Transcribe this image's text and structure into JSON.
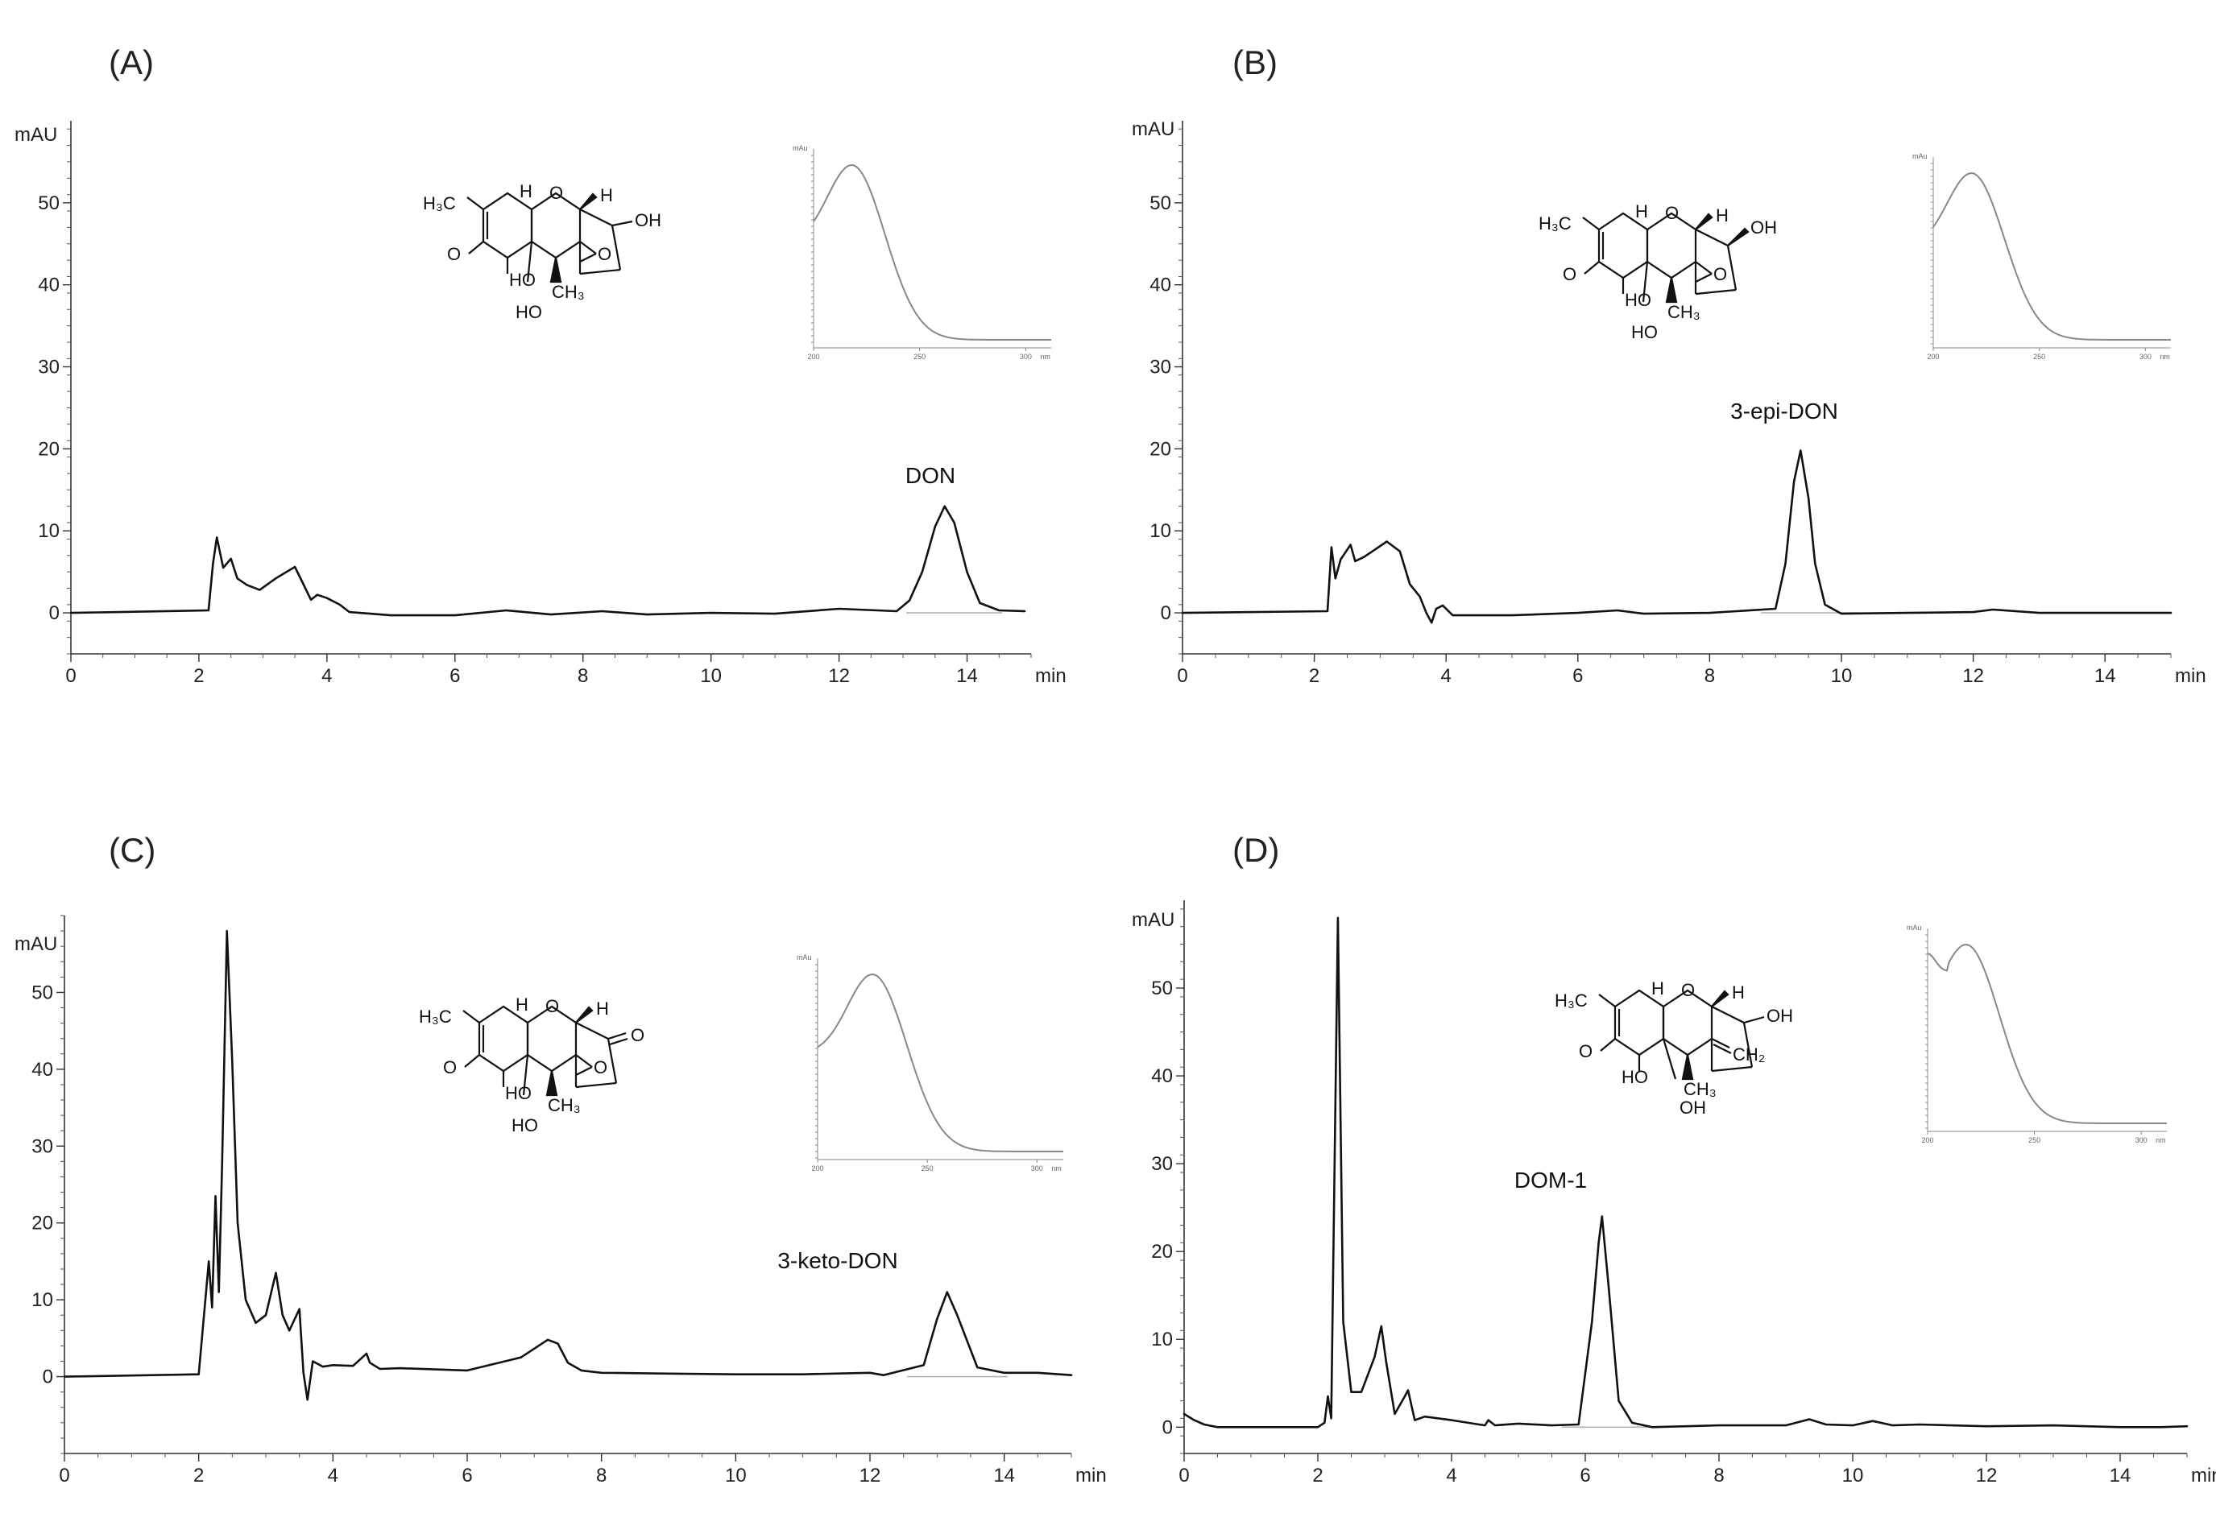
{
  "chart_data": [
    {
      "type": "line",
      "panel_label": "(A)",
      "ylabel": "mAU",
      "xlabel": "min",
      "xlim": [
        0,
        15
      ],
      "ylim": [
        -5,
        60
      ],
      "xticks": [
        0,
        2,
        4,
        6,
        8,
        10,
        12,
        14
      ],
      "yticks": [
        0,
        10,
        20,
        30,
        40,
        50
      ],
      "peak_label": "DON",
      "peak": {
        "rt": 13.65,
        "height": 13.0
      },
      "series": [
        {
          "x": [
            0,
            2.15,
            2.22,
            2.28,
            2.38,
            2.5,
            2.6,
            2.75,
            2.95,
            3.2,
            3.5,
            3.65,
            3.75,
            3.85,
            4.0,
            4.2,
            4.35,
            5,
            6,
            6.8,
            7.5,
            8.3,
            9,
            10,
            11,
            12,
            12.9,
            13.1,
            13.3,
            13.5,
            13.65,
            13.8,
            14.0,
            14.2,
            14.5,
            14.9
          ],
          "y": [
            0,
            0.3,
            6,
            9.2,
            5.5,
            6.6,
            4.2,
            3.4,
            2.8,
            4.2,
            5.6,
            3.2,
            1.6,
            2.2,
            1.8,
            1.0,
            0.1,
            -0.3,
            -0.3,
            0.3,
            -0.2,
            0.2,
            -0.2,
            0,
            -0.1,
            0.5,
            0.2,
            1.5,
            5,
            10.5,
            13.0,
            11.0,
            5,
            1.2,
            0.3,
            0.2
          ]
        }
      ],
      "inset": {
        "type": "uv-spectrum",
        "ylabel": "mAu",
        "xunit": "nm",
        "xticks": [
          200,
          250,
          300
        ],
        "lambda_max": 218
      }
    },
    {
      "type": "line",
      "panel_label": "(B)",
      "ylabel": "mAU",
      "xlabel": "min",
      "xlim": [
        0,
        15
      ],
      "ylim": [
        -5,
        60
      ],
      "xticks": [
        0,
        2,
        4,
        6,
        8,
        10,
        12,
        14
      ],
      "yticks": [
        0,
        10,
        20,
        30,
        40,
        50
      ],
      "peak_label": "3-epi-DON",
      "peak": {
        "rt": 9.38,
        "height": 19.8
      },
      "series": [
        {
          "x": [
            0,
            2.2,
            2.26,
            2.32,
            2.4,
            2.55,
            2.62,
            2.75,
            2.9,
            3.1,
            3.3,
            3.45,
            3.6,
            3.7,
            3.78,
            3.85,
            3.95,
            4.1,
            5,
            6,
            6.6,
            7,
            8,
            9.0,
            9.15,
            9.28,
            9.38,
            9.5,
            9.6,
            9.75,
            10,
            11,
            12,
            12.3,
            13,
            14,
            15
          ],
          "y": [
            0,
            0.2,
            8,
            4.2,
            6.5,
            8.3,
            6.3,
            6.8,
            7.6,
            8.7,
            7.5,
            3.5,
            2.0,
            0.0,
            -1.2,
            0.5,
            0.9,
            -0.3,
            -0.3,
            0,
            0.3,
            -0.1,
            0,
            0.5,
            6,
            16,
            19.8,
            14,
            6,
            1,
            -0.1,
            0,
            0.1,
            0.4,
            0,
            0,
            0
          ]
        }
      ],
      "inset": {
        "type": "uv-spectrum",
        "ylabel": "mAu",
        "xunit": "nm",
        "xticks": [
          200,
          250,
          300
        ],
        "lambda_max": 218
      }
    },
    {
      "type": "line",
      "panel_label": "(C)",
      "ylabel": "mAU",
      "xlabel": "min",
      "xlim": [
        0,
        15
      ],
      "ylim": [
        -10,
        60
      ],
      "xticks": [
        0,
        2,
        4,
        6,
        8,
        10,
        12,
        14
      ],
      "yticks": [
        0,
        10,
        20,
        30,
        40,
        50
      ],
      "peak_label": "3-keto-DON",
      "peak": {
        "rt": 13.15,
        "height": 11.0
      },
      "series": [
        {
          "x": [
            0,
            2.0,
            2.15,
            2.2,
            2.25,
            2.3,
            2.35,
            2.42,
            2.5,
            2.58,
            2.7,
            2.85,
            3.0,
            3.15,
            3.25,
            3.35,
            3.5,
            3.56,
            3.62,
            3.7,
            3.85,
            4.0,
            4.3,
            4.5,
            4.55,
            4.7,
            5,
            6,
            6.8,
            7.2,
            7.35,
            7.5,
            7.7,
            8,
            9,
            10,
            11,
            12,
            12.2,
            12.8,
            13.0,
            13.15,
            13.3,
            13.6,
            14,
            14.5,
            15
          ],
          "y": [
            0,
            0.3,
            15,
            9,
            23.5,
            11,
            28,
            58,
            41,
            20,
            10,
            7,
            8,
            13.5,
            8,
            6,
            8.8,
            0.5,
            -3,
            2,
            1.3,
            1.5,
            1.4,
            3,
            1.8,
            1.0,
            1.1,
            0.8,
            2.5,
            4.8,
            4.3,
            1.8,
            0.8,
            0.5,
            0.4,
            0.3,
            0.3,
            0.5,
            0.2,
            1.5,
            7.5,
            11,
            8,
            1.2,
            0.5,
            0.5,
            0.2
          ]
        }
      ],
      "inset": {
        "type": "uv-spectrum",
        "ylabel": "mAu",
        "xunit": "nm",
        "xticks": [
          200,
          250,
          300
        ],
        "lambda_max": 225
      }
    },
    {
      "type": "line",
      "panel_label": "(D)",
      "ylabel": "mAU",
      "xlabel": "min",
      "xlim": [
        0,
        15
      ],
      "ylim": [
        -3,
        60
      ],
      "xticks": [
        0,
        2,
        4,
        6,
        8,
        10,
        12,
        14
      ],
      "yticks": [
        0,
        10,
        20,
        30,
        40,
        50
      ],
      "peak_label": "DOM-1",
      "peak": {
        "rt": 6.25,
        "height": 24.0
      },
      "series": [
        {
          "x": [
            0,
            0.15,
            0.3,
            0.5,
            1,
            2.0,
            2.1,
            2.15,
            2.2,
            2.25,
            2.3,
            2.38,
            2.5,
            2.65,
            2.85,
            2.95,
            3.02,
            3.15,
            3.3,
            3.35,
            3.45,
            3.6,
            4,
            4.5,
            4.55,
            4.65,
            5,
            5.5,
            5.9,
            6.1,
            6.2,
            6.25,
            6.35,
            6.5,
            6.7,
            7,
            8,
            9,
            9.35,
            9.6,
            10,
            10.3,
            10.6,
            11,
            12,
            13,
            14,
            14.6,
            15
          ],
          "y": [
            1.5,
            0.8,
            0.3,
            0,
            0,
            0,
            0.5,
            3.5,
            1,
            30,
            58,
            12,
            4,
            4,
            8,
            11.5,
            7.5,
            1.5,
            3.5,
            4.2,
            0.8,
            1.2,
            0.8,
            0.2,
            0.8,
            0.2,
            0.4,
            0.2,
            0.3,
            12,
            21,
            24,
            16,
            3,
            0.5,
            0.0,
            0.2,
            0.2,
            0.9,
            0.3,
            0.2,
            0.7,
            0.2,
            0.3,
            0.1,
            0.2,
            0,
            0,
            0.1
          ]
        }
      ],
      "inset": {
        "type": "uv-spectrum",
        "ylabel": "mAu",
        "xunit": "nm",
        "xticks": [
          200,
          250,
          300
        ],
        "lambda_max": 218
      }
    }
  ]
}
